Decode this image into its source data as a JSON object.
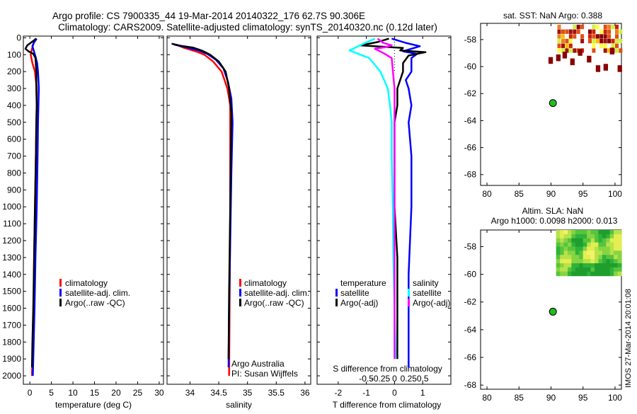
{
  "header": {
    "title1": "Argo profile: CS 7900335_44 19-Mar-2014 20140322_176 62.7S 90.306E",
    "title2": "Climatology: CARS2009. Satellite-adjusted climatology: synTS_20140320.nc (0.12d later)"
  },
  "colors": {
    "climatology": "#ff0000",
    "satellite": "#0000ff",
    "argo": "#000000",
    "sal_satellite": "#00ffff",
    "sal_argo": "#ff00ff"
  },
  "legends": {
    "profile": [
      "climatology",
      "satellite-adj. clim.",
      "Argo(..raw -QC)"
    ],
    "diff_temperature_title": "temperature",
    "diff_salinity_title": "salinity",
    "diff_temperature": [
      "satellite",
      "Argo(-adj)"
    ],
    "diff_salinity": [
      "satellite",
      "Argo(-adj)"
    ]
  },
  "credits": {
    "line1": "Argo Australia",
    "line2": "PI: Susan Wijffels",
    "stamp": "IMOS 27-Mar-2014 20:01:08"
  },
  "chart_data": [
    {
      "type": "line",
      "id": "temperature",
      "xlabel": "temperature (deg C)",
      "ylabel": "",
      "xlim": [
        -1.5,
        31
      ],
      "ylim": [
        2050,
        -10
      ],
      "yreversed": true,
      "xticks": [
        0,
        5,
        10,
        15,
        20,
        25,
        30
      ],
      "yticks": [
        0,
        100,
        200,
        300,
        400,
        500,
        600,
        700,
        800,
        900,
        1000,
        1100,
        1200,
        1300,
        1400,
        1500,
        1600,
        1700,
        1800,
        1900,
        2000
      ],
      "series": [
        {
          "name": "climatology",
          "points": [
            [
              1.3,
              5
            ],
            [
              0.8,
              40
            ],
            [
              0.4,
              75
            ],
            [
              0.2,
              100
            ],
            [
              0.6,
              150
            ],
            [
              1.2,
              200
            ],
            [
              1.6,
              300
            ],
            [
              1.6,
              400
            ],
            [
              1.5,
              500
            ],
            [
              1.4,
              700
            ],
            [
              1.2,
              1000
            ],
            [
              1.0,
              1300
            ],
            [
              0.9,
              1600
            ],
            [
              0.7,
              1800
            ],
            [
              0.5,
              2000
            ]
          ]
        },
        {
          "name": "satellite-adj. clim.",
          "points": [
            [
              1.6,
              5
            ],
            [
              0.9,
              30
            ],
            [
              0.6,
              50
            ],
            [
              0.9,
              75
            ],
            [
              1.3,
              110
            ],
            [
              1.7,
              150
            ],
            [
              1.9,
              200
            ],
            [
              2.1,
              300
            ],
            [
              2.0,
              400
            ],
            [
              1.9,
              500
            ],
            [
              1.8,
              700
            ],
            [
              1.6,
              1000
            ],
            [
              1.3,
              1300
            ],
            [
              1.1,
              1600
            ],
            [
              0.9,
              1800
            ],
            [
              0.7,
              2000
            ]
          ]
        },
        {
          "name": "Argo(..raw -QC)",
          "points": [
            [
              1.5,
              5
            ],
            [
              -0.6,
              45
            ],
            [
              -1.0,
              65
            ],
            [
              -0.3,
              80
            ],
            [
              0.8,
              95
            ],
            [
              1.3,
              120
            ],
            [
              1.5,
              200
            ],
            [
              1.5,
              300
            ],
            [
              1.6,
              400
            ],
            [
              1.5,
              500
            ],
            [
              1.4,
              700
            ],
            [
              1.2,
              1000
            ],
            [
              1.0,
              1300
            ],
            [
              0.8,
              1600
            ],
            [
              0.6,
              1800
            ],
            [
              0.5,
              1950
            ]
          ]
        }
      ]
    },
    {
      "type": "line",
      "id": "salinity",
      "xlabel": "salinity",
      "ylabel": "",
      "xlim": [
        33.6,
        36.1
      ],
      "ylim": [
        2050,
        -10
      ],
      "yreversed": true,
      "xticks": [
        34,
        34.5,
        35,
        35.5,
        36
      ],
      "series": [
        {
          "name": "climatology",
          "points": [
            [
              33.75,
              40
            ],
            [
              33.9,
              60
            ],
            [
              34.1,
              80
            ],
            [
              34.25,
              100
            ],
            [
              34.4,
              140
            ],
            [
              34.55,
              200
            ],
            [
              34.65,
              300
            ],
            [
              34.7,
              400
            ],
            [
              34.7,
              600
            ],
            [
              34.7,
              1000
            ],
            [
              34.69,
              1500
            ],
            [
              34.68,
              2000
            ]
          ]
        },
        {
          "name": "satellite-adj. clim.",
          "points": [
            [
              33.72,
              40
            ],
            [
              33.95,
              58
            ],
            [
              34.15,
              75
            ],
            [
              34.3,
              95
            ],
            [
              34.45,
              130
            ],
            [
              34.58,
              180
            ],
            [
              34.66,
              260
            ],
            [
              34.72,
              360
            ],
            [
              34.74,
              500
            ],
            [
              34.72,
              800
            ],
            [
              34.7,
              1200
            ],
            [
              34.68,
              1600
            ],
            [
              34.67,
              1950
            ]
          ]
        },
        {
          "name": "Argo(..raw -QC)",
          "points": [
            [
              33.68,
              35
            ],
            [
              33.85,
              48
            ],
            [
              34.05,
              58
            ],
            [
              34.2,
              75
            ],
            [
              34.35,
              100
            ],
            [
              34.5,
              140
            ],
            [
              34.62,
              200
            ],
            [
              34.68,
              300
            ],
            [
              34.72,
              450
            ],
            [
              34.71,
              700
            ],
            [
              34.7,
              1000
            ],
            [
              34.68,
              1500
            ],
            [
              34.67,
              1900
            ]
          ]
        }
      ]
    },
    {
      "type": "line",
      "id": "difference",
      "xlabel": "T difference from climatology",
      "xlabel_top": "S difference from climatology",
      "xlim": [
        -2.75,
        2.0
      ],
      "ylim": [
        2050,
        -10
      ],
      "yreversed": true,
      "xticks": [
        -2,
        -1,
        0,
        1
      ],
      "xticks_s": [
        -0.5,
        -0.25,
        0,
        0.25,
        0.5
      ],
      "series": [
        {
          "name": "temperature satellite",
          "points": [
            [
              -0.1,
              5
            ],
            [
              0.4,
              30
            ],
            [
              0.9,
              50
            ],
            [
              0.3,
              80
            ],
            [
              0.8,
              95
            ],
            [
              0.6,
              120
            ],
            [
              0.6,
              200
            ],
            [
              0.4,
              250
            ],
            [
              0.5,
              300
            ],
            [
              0.6,
              400
            ],
            [
              0.5,
              500
            ],
            [
              0.6,
              700
            ],
            [
              0.6,
              1000
            ],
            [
              0.5,
              1400
            ],
            [
              0.5,
              1800
            ],
            [
              0.5,
              1950
            ]
          ]
        },
        {
          "name": "temperature Argo(-adj)",
          "points": [
            [
              -0.2,
              5
            ],
            [
              -0.6,
              25
            ],
            [
              -1.2,
              45
            ],
            [
              0.3,
              60
            ],
            [
              0.2,
              75
            ],
            [
              1.1,
              85
            ],
            [
              0.5,
              105
            ],
            [
              0.3,
              150
            ],
            [
              0.3,
              200
            ],
            [
              0.1,
              300
            ],
            [
              0.1,
              400
            ],
            [
              0.0,
              500
            ],
            [
              0.0,
              700
            ],
            [
              0.0,
              1000
            ],
            [
              0.1,
              1300
            ],
            [
              0.1,
              1600
            ],
            [
              0.1,
              1900
            ]
          ]
        },
        {
          "name": "salinity satellite",
          "points": [
            [
              -0.35,
              5
            ],
            [
              -0.55,
              35
            ],
            [
              -0.8,
              75
            ],
            [
              -0.45,
              120
            ],
            [
              -0.25,
              200
            ],
            [
              -0.12,
              300
            ],
            [
              -0.08,
              400
            ],
            [
              -0.05,
              500
            ],
            [
              -0.05,
              700
            ],
            [
              -0.03,
              1000
            ],
            [
              -0.02,
              1300
            ],
            [
              0.0,
              1600
            ],
            [
              0.02,
              1900
            ]
          ]
        },
        {
          "name": "salinity Argo(-adj)",
          "points": [
            [
              -0.3,
              5
            ],
            [
              -0.2,
              30
            ],
            [
              -0.05,
              45
            ],
            [
              -0.15,
              55
            ],
            [
              -0.35,
              65
            ],
            [
              -0.2,
              90
            ],
            [
              -0.05,
              120
            ],
            [
              0.0,
              300
            ],
            [
              0.0,
              1000
            ],
            [
              0.0,
              1900
            ]
          ]
        }
      ]
    },
    {
      "type": "heatmap",
      "id": "sst-map",
      "title": "sat. SST: NaN Argo: 0.388",
      "xlim": [
        79,
        101
      ],
      "ylim": [
        -68.8,
        -56.8
      ],
      "xticks": [
        80,
        85,
        90,
        95,
        100
      ],
      "yticks": [
        -58,
        -60,
        -62,
        -64,
        -66,
        -68
      ],
      "argo_position": {
        "lon": 90.3,
        "lat": -62.7
      }
    },
    {
      "type": "heatmap",
      "id": "sla-map",
      "title": "Altim. SLA: NaN",
      "subtitle": "Argo h1000: 0.0098 h2000: 0.013",
      "xlim": [
        79,
        101
      ],
      "ylim": [
        -68.3,
        -56.8
      ],
      "xticks": [
        80,
        85,
        90,
        95,
        100
      ],
      "yticks": [
        -58,
        -60,
        -62,
        -64,
        -66,
        -68
      ],
      "argo_position": {
        "lon": 90.3,
        "lat": -62.7
      }
    }
  ]
}
